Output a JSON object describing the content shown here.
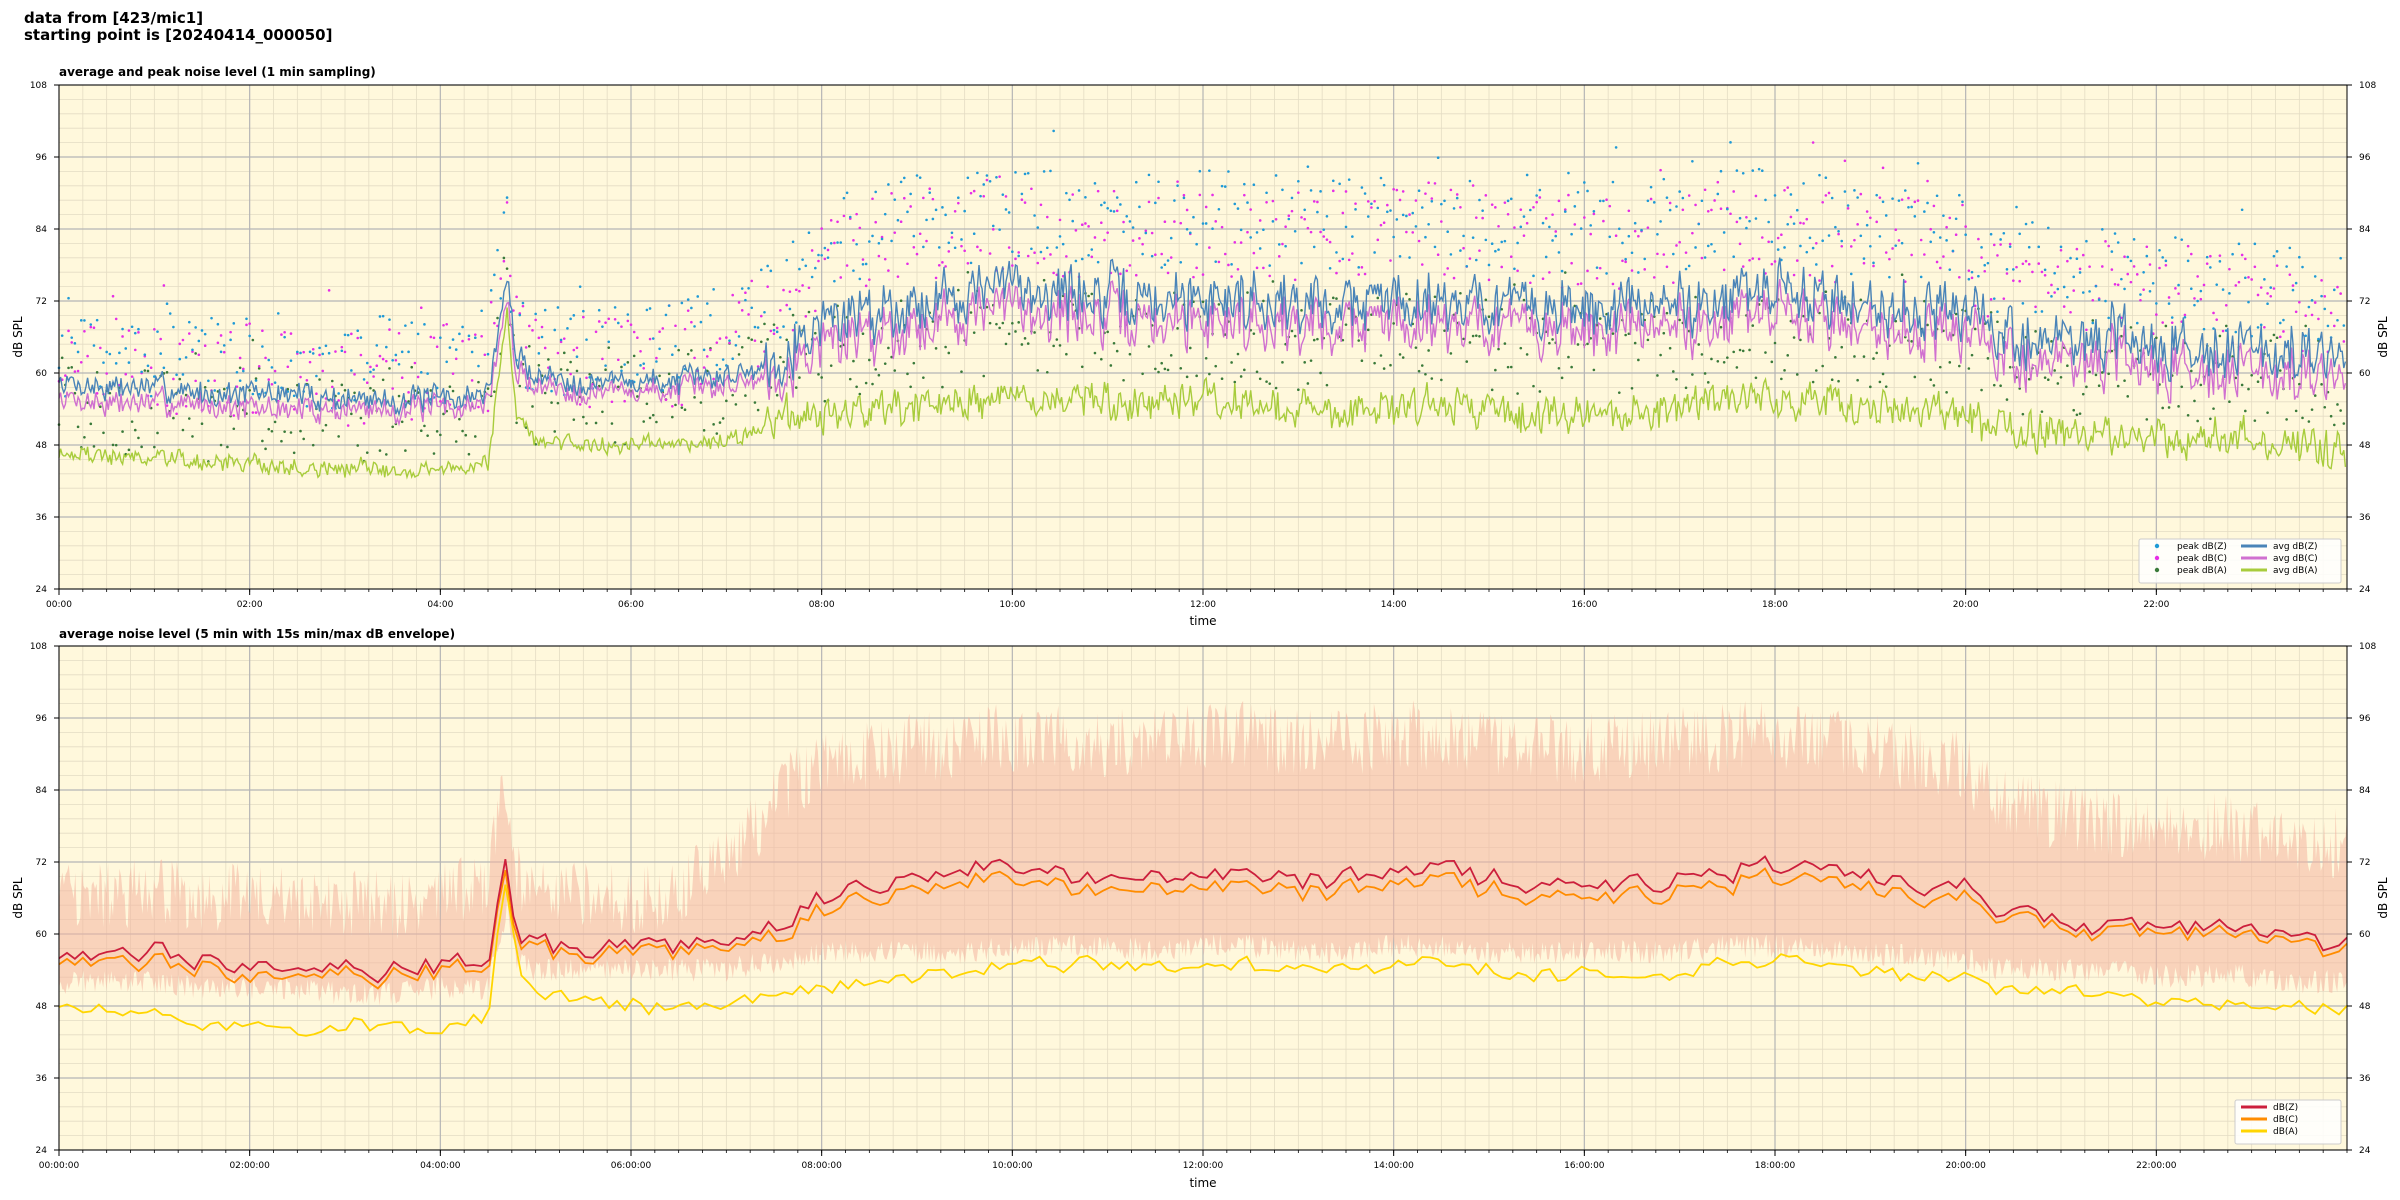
{
  "header": {
    "line1": "data from [423/mic1]",
    "line2": "starting point is [20240414_000050]"
  },
  "colors": {
    "panel_bg": "#fff8dc",
    "grid_major": "#b5b5b5",
    "grid_minor": "#e4dcc4",
    "peak_z": "#1f9ad6",
    "peak_c": "#e62ee6",
    "peak_a": "#3a7a3a",
    "avg_z": "#4a84b8",
    "avg_c": "#d070d0",
    "avg_a": "#a8cc3c",
    "dbz": "#cc1f3c",
    "dbc": "#ff8c00",
    "dba": "#ffd500",
    "envelope": "#f4b4a0"
  },
  "chart_data": [
    {
      "type": "line",
      "title": "average and peak noise level (1 min sampling)",
      "xlabel": "time",
      "ylabel": "dB SPL",
      "ylim": [
        24,
        108
      ],
      "xlim_hours": [
        0,
        24
      ],
      "yticks": [
        24,
        36,
        48,
        60,
        72,
        84,
        96,
        108
      ],
      "ytick_labels": [
        "24",
        "36",
        "48",
        "60",
        "72",
        "84",
        "96",
        "108"
      ],
      "xticks_hours": [
        0,
        2,
        4,
        6,
        8,
        10,
        12,
        14,
        16,
        18,
        20,
        22
      ],
      "xtick_labels": [
        "00:00",
        "02:00",
        "04:00",
        "06:00",
        "08:00",
        "10:00",
        "12:00",
        "14:00",
        "16:00",
        "18:00",
        "20:00",
        "22:00"
      ],
      "grid": true,
      "legend": "bottom-right",
      "legend_columns": 2,
      "legend_entries": [
        {
          "label": "peak dB(Z)",
          "kind": "marker",
          "color_key": "peak_z"
        },
        {
          "label": "peak dB(C)",
          "kind": "marker",
          "color_key": "peak_c"
        },
        {
          "label": "peak dB(A)",
          "kind": "marker",
          "color_key": "peak_a"
        },
        {
          "label": "avg dB(Z)",
          "kind": "line",
          "color_key": "avg_z"
        },
        {
          "label": "avg dB(C)",
          "kind": "line",
          "color_key": "avg_c"
        },
        {
          "label": "avg dB(A)",
          "kind": "line",
          "color_key": "avg_a"
        }
      ],
      "x_hours": [
        0,
        0.5,
        1,
        1.5,
        2,
        2.5,
        3,
        3.5,
        4,
        4.5,
        4.6,
        4.7,
        4.8,
        5,
        5.5,
        6,
        6.5,
        7,
        7.3,
        7.6,
        8,
        8.5,
        9,
        9.5,
        10,
        10.5,
        11,
        11.5,
        12,
        12.5,
        13,
        13.5,
        14,
        14.5,
        15,
        15.5,
        16,
        16.5,
        17,
        17.5,
        18,
        18.5,
        19,
        19.5,
        20,
        20.3,
        20.6,
        21,
        21.5,
        22,
        22.5,
        23,
        23.5,
        24
      ],
      "series": [
        {
          "name": "avg dB(Z)",
          "color_key": "avg_z",
          "values": [
            58,
            57,
            57,
            56,
            56,
            56,
            55,
            55,
            55,
            56,
            66,
            75,
            62,
            59,
            58,
            58,
            58,
            59,
            60,
            63,
            68,
            70,
            71,
            73,
            74,
            73,
            72,
            71,
            72,
            72,
            71,
            71,
            72,
            72,
            71,
            70,
            70,
            70,
            71,
            72,
            73,
            72,
            71,
            70,
            70,
            66,
            65,
            65,
            65,
            64,
            64,
            63,
            62,
            62
          ]
        },
        {
          "name": "avg dB(C)",
          "color_key": "avg_c",
          "values": [
            56,
            55,
            55,
            55,
            54,
            54,
            54,
            54,
            54,
            55,
            64,
            72,
            60,
            58,
            57,
            57,
            57,
            58,
            59,
            61,
            65,
            67,
            68,
            70,
            71,
            70,
            69,
            68,
            69,
            69,
            68,
            68,
            69,
            69,
            68,
            67,
            67,
            67,
            68,
            69,
            70,
            69,
            68,
            67,
            67,
            63,
            62,
            62,
            62,
            61,
            61,
            60,
            59,
            59
          ]
        },
        {
          "name": "avg dB(A)",
          "color_key": "avg_a",
          "values": [
            47,
            46,
            46,
            45,
            45,
            44,
            44,
            44,
            44,
            45,
            58,
            70,
            53,
            49,
            48,
            48,
            48,
            49,
            50,
            52,
            53,
            53,
            54,
            55,
            56,
            56,
            55,
            54,
            55,
            55,
            54,
            54,
            55,
            55,
            54,
            53,
            53,
            53,
            54,
            55,
            56,
            55,
            54,
            53,
            53,
            51,
            50,
            50,
            50,
            49,
            49,
            49,
            48,
            47
          ]
        },
        {
          "name": "peak dB(Z)",
          "color_key": "peak_z",
          "values": [
            64,
            63,
            63,
            62,
            63,
            62,
            61,
            62,
            62,
            63,
            74,
            84,
            66,
            64,
            64,
            64,
            64,
            67,
            70,
            74,
            80,
            84,
            85,
            86,
            87,
            86,
            86,
            85,
            86,
            86,
            85,
            85,
            86,
            86,
            85,
            84,
            84,
            84,
            85,
            86,
            86,
            85,
            84,
            83,
            82,
            78,
            77,
            77,
            76,
            76,
            75,
            74,
            73,
            72
          ]
        },
        {
          "name": "peak dB(C)",
          "color_key": "peak_c",
          "values": [
            62,
            61,
            61,
            60,
            61,
            60,
            59,
            60,
            60,
            61,
            72,
            81,
            64,
            62,
            62,
            62,
            62,
            65,
            68,
            72,
            78,
            82,
            83,
            84,
            85,
            84,
            84,
            83,
            84,
            84,
            83,
            83,
            84,
            84,
            83,
            82,
            82,
            82,
            83,
            84,
            84,
            83,
            82,
            81,
            80,
            76,
            75,
            75,
            74,
            74,
            73,
            72,
            71,
            70
          ]
        },
        {
          "name": "peak dB(A)",
          "color_key": "peak_a",
          "values": [
            55,
            54,
            54,
            53,
            54,
            53,
            52,
            53,
            53,
            54,
            66,
            76,
            58,
            56,
            56,
            56,
            56,
            58,
            60,
            62,
            63,
            64,
            65,
            66,
            67,
            67,
            66,
            65,
            66,
            66,
            65,
            65,
            66,
            66,
            65,
            64,
            64,
            64,
            65,
            66,
            67,
            66,
            65,
            64,
            64,
            62,
            61,
            61,
            61,
            60,
            60,
            60,
            59,
            58
          ]
        }
      ]
    },
    {
      "type": "line",
      "title": "average noise level (5 min with 15s min/max dB envelope)",
      "xlabel": "time",
      "ylabel": "dB SPL",
      "ylim": [
        24,
        108
      ],
      "xlim_hours": [
        0,
        24
      ],
      "yticks": [
        24,
        36,
        48,
        60,
        72,
        84,
        96,
        108
      ],
      "ytick_labels": [
        "24",
        "36",
        "48",
        "60",
        "72",
        "84",
        "96",
        "108"
      ],
      "xticks_hours": [
        0,
        2,
        4,
        6,
        8,
        10,
        12,
        14,
        16,
        18,
        20,
        22
      ],
      "xtick_labels": [
        "00:00:00",
        "02:00:00",
        "04:00:00",
        "06:00:00",
        "08:00:00",
        "10:00:00",
        "12:00:00",
        "14:00:00",
        "16:00:00",
        "18:00:00",
        "20:00:00",
        "22:00:00"
      ],
      "grid": true,
      "legend": "bottom-right",
      "legend_columns": 1,
      "legend_entries": [
        {
          "label": "dB(Z)",
          "kind": "line",
          "color_key": "dbz"
        },
        {
          "label": "dB(C)",
          "kind": "line",
          "color_key": "dbc"
        },
        {
          "label": "dB(A)",
          "kind": "line",
          "color_key": "dba"
        }
      ],
      "x_hours": [
        0,
        0.5,
        1,
        1.5,
        2,
        2.5,
        3,
        3.5,
        4,
        4.5,
        4.6,
        4.7,
        4.8,
        5,
        5.5,
        6,
        6.5,
        7,
        7.3,
        7.6,
        8,
        8.5,
        9,
        9.5,
        10,
        10.5,
        11,
        11.5,
        12,
        12.5,
        13,
        13.5,
        14,
        14.5,
        15,
        15.5,
        16,
        16.5,
        17,
        17.5,
        18,
        18.5,
        19,
        19.5,
        20,
        20.3,
        20.6,
        21,
        21.5,
        22,
        22.5,
        23,
        23.5,
        24
      ],
      "series": [
        {
          "name": "dB(Z)",
          "color_key": "dbz",
          "values": [
            57,
            56,
            57,
            56,
            56,
            55,
            55,
            54,
            55,
            55,
            65,
            73,
            60,
            58,
            58,
            58,
            58,
            59,
            60,
            62,
            66,
            68,
            69,
            71,
            72,
            71,
            70,
            70,
            71,
            70,
            69,
            69,
            70,
            71,
            69,
            68,
            68,
            68,
            69,
            70,
            71,
            70,
            69,
            68,
            68,
            63,
            63,
            62,
            62,
            61,
            61,
            60,
            59,
            58
          ]
        },
        {
          "name": "dB(C)",
          "color_key": "dbc",
          "values": [
            56,
            55,
            55,
            55,
            54,
            54,
            54,
            53,
            54,
            54,
            64,
            71,
            59,
            57,
            57,
            57,
            57,
            58,
            59,
            60,
            64,
            66,
            67,
            69,
            70,
            69,
            68,
            68,
            69,
            68,
            67,
            67,
            68,
            69,
            67,
            66,
            66,
            66,
            67,
            68,
            69,
            68,
            67,
            66,
            66,
            62,
            62,
            61,
            61,
            60,
            60,
            59,
            58,
            57
          ]
        },
        {
          "name": "dB(A)",
          "color_key": "dba",
          "values": [
            48,
            47,
            46,
            45,
            45,
            44,
            45,
            44,
            45,
            45,
            60,
            70,
            54,
            49,
            49,
            48,
            48,
            48,
            49,
            50,
            51,
            52,
            53,
            54,
            56,
            55,
            55,
            54,
            55,
            55,
            54,
            54,
            55,
            55,
            54,
            53,
            53,
            53,
            54,
            55,
            56,
            55,
            54,
            53,
            53,
            51,
            50,
            50,
            50,
            49,
            49,
            48,
            48,
            47
          ]
        }
      ],
      "envelope": {
        "color_key": "envelope",
        "min": [
          52,
          52,
          52,
          51,
          51,
          51,
          50,
          50,
          51,
          51,
          58,
          64,
          55,
          54,
          54,
          54,
          54,
          54,
          55,
          55,
          57,
          57,
          57,
          57,
          58,
          58,
          58,
          57,
          58,
          58,
          57,
          57,
          58,
          58,
          57,
          57,
          57,
          57,
          57,
          58,
          58,
          57,
          57,
          56,
          56,
          54,
          54,
          54,
          54,
          53,
          53,
          53,
          52,
          52
        ],
        "max": [
          68,
          66,
          67,
          66,
          66,
          65,
          65,
          65,
          66,
          68,
          78,
          86,
          70,
          66,
          66,
          66,
          67,
          72,
          78,
          84,
          88,
          90,
          91,
          92,
          93,
          93,
          92,
          92,
          93,
          93,
          92,
          92,
          93,
          93,
          92,
          91,
          91,
          91,
          92,
          93,
          93,
          92,
          91,
          89,
          88,
          82,
          81,
          80,
          79,
          78,
          78,
          77,
          76,
          75
        ]
      }
    }
  ]
}
